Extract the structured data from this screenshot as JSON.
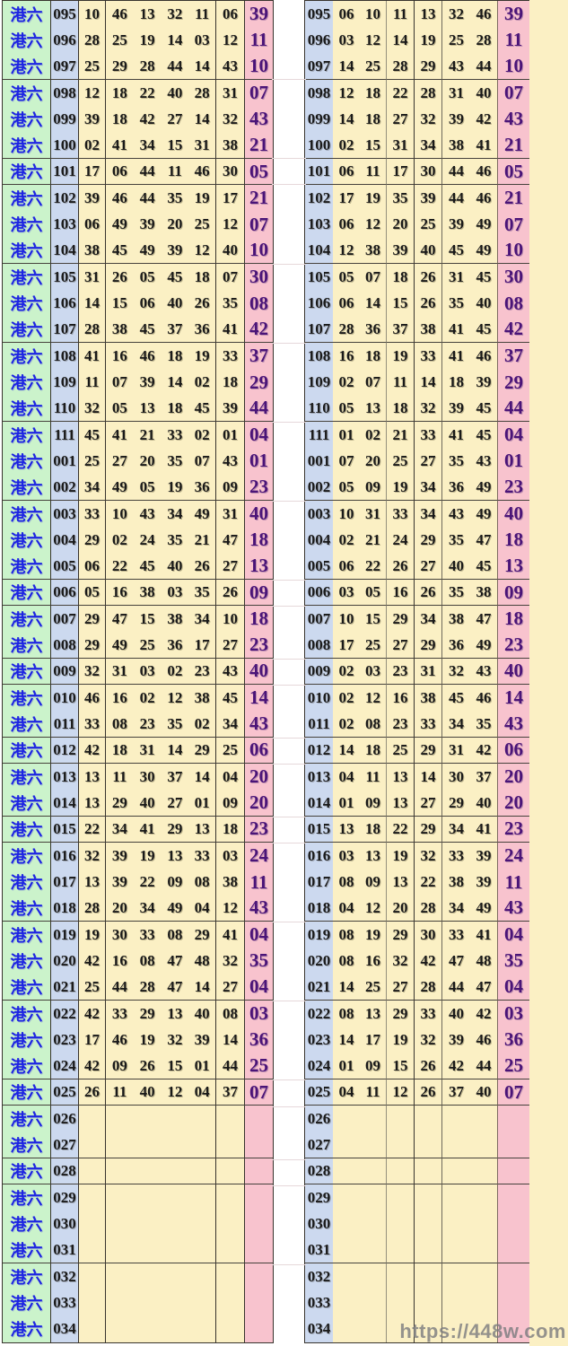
{
  "site": {
    "watermark": "https://448w.com"
  },
  "row_label": "港六",
  "colors": {
    "label_bg": "#cbf3cb",
    "period_bg": "#ccd9ef",
    "number_bg": "#fbf0c4",
    "special_bg": "#f8c3ce",
    "label_text": "#1d24e2",
    "special_text": "#4a1478",
    "watermark_text": "#7d7d80"
  },
  "groups": [
    3,
    3,
    1,
    3,
    3,
    3,
    3,
    3,
    1,
    2,
    1,
    2,
    1,
    2,
    1,
    3,
    3,
    3,
    1,
    2,
    1,
    3,
    3
  ],
  "draws": [
    {
      "period": "095",
      "drawn": [
        "10",
        "46",
        "13",
        "32",
        "11",
        "06"
      ],
      "sorted": [
        "06",
        "10",
        "11",
        "13",
        "32",
        "46"
      ],
      "special": "39"
    },
    {
      "period": "096",
      "drawn": [
        "28",
        "25",
        "19",
        "14",
        "03",
        "12"
      ],
      "sorted": [
        "03",
        "12",
        "14",
        "19",
        "25",
        "28"
      ],
      "special": "11"
    },
    {
      "period": "097",
      "drawn": [
        "25",
        "29",
        "28",
        "44",
        "14",
        "43"
      ],
      "sorted": [
        "14",
        "25",
        "28",
        "29",
        "43",
        "44"
      ],
      "special": "10"
    },
    {
      "period": "098",
      "drawn": [
        "12",
        "18",
        "22",
        "40",
        "28",
        "31"
      ],
      "sorted": [
        "12",
        "18",
        "22",
        "28",
        "31",
        "40"
      ],
      "special": "07"
    },
    {
      "period": "099",
      "drawn": [
        "39",
        "18",
        "42",
        "27",
        "14",
        "32"
      ],
      "sorted": [
        "14",
        "18",
        "27",
        "32",
        "39",
        "42"
      ],
      "special": "43"
    },
    {
      "period": "100",
      "drawn": [
        "02",
        "41",
        "34",
        "15",
        "31",
        "38"
      ],
      "sorted": [
        "02",
        "15",
        "31",
        "34",
        "38",
        "41"
      ],
      "special": "21"
    },
    {
      "period": "101",
      "drawn": [
        "17",
        "06",
        "44",
        "11",
        "46",
        "30"
      ],
      "sorted": [
        "06",
        "11",
        "17",
        "30",
        "44",
        "46"
      ],
      "special": "05"
    },
    {
      "period": "102",
      "drawn": [
        "39",
        "46",
        "44",
        "35",
        "19",
        "17"
      ],
      "sorted": [
        "17",
        "19",
        "35",
        "39",
        "44",
        "46"
      ],
      "special": "21"
    },
    {
      "period": "103",
      "drawn": [
        "06",
        "49",
        "39",
        "20",
        "25",
        "12"
      ],
      "sorted": [
        "06",
        "12",
        "20",
        "25",
        "39",
        "49"
      ],
      "special": "07"
    },
    {
      "period": "104",
      "drawn": [
        "38",
        "45",
        "49",
        "39",
        "12",
        "40"
      ],
      "sorted": [
        "12",
        "38",
        "39",
        "40",
        "45",
        "49"
      ],
      "special": "10"
    },
    {
      "period": "105",
      "drawn": [
        "31",
        "26",
        "05",
        "45",
        "18",
        "07"
      ],
      "sorted": [
        "05",
        "07",
        "18",
        "26",
        "31",
        "45"
      ],
      "special": "30"
    },
    {
      "period": "106",
      "drawn": [
        "14",
        "15",
        "06",
        "40",
        "26",
        "35"
      ],
      "sorted": [
        "06",
        "14",
        "15",
        "26",
        "35",
        "40"
      ],
      "special": "08"
    },
    {
      "period": "107",
      "drawn": [
        "28",
        "38",
        "45",
        "37",
        "36",
        "41"
      ],
      "sorted": [
        "28",
        "36",
        "37",
        "38",
        "41",
        "45"
      ],
      "special": "42"
    },
    {
      "period": "108",
      "drawn": [
        "41",
        "16",
        "46",
        "18",
        "19",
        "33"
      ],
      "sorted": [
        "16",
        "18",
        "19",
        "33",
        "41",
        "46"
      ],
      "special": "37"
    },
    {
      "period": "109",
      "drawn": [
        "11",
        "07",
        "39",
        "14",
        "02",
        "18"
      ],
      "sorted": [
        "02",
        "07",
        "11",
        "14",
        "18",
        "39"
      ],
      "special": "29"
    },
    {
      "period": "110",
      "drawn": [
        "32",
        "05",
        "13",
        "18",
        "45",
        "39"
      ],
      "sorted": [
        "05",
        "13",
        "18",
        "32",
        "39",
        "45"
      ],
      "special": "44"
    },
    {
      "period": "111",
      "drawn": [
        "45",
        "41",
        "21",
        "33",
        "02",
        "01"
      ],
      "sorted": [
        "01",
        "02",
        "21",
        "33",
        "41",
        "45"
      ],
      "special": "04"
    },
    {
      "period": "001",
      "drawn": [
        "25",
        "27",
        "20",
        "35",
        "07",
        "43"
      ],
      "sorted": [
        "07",
        "20",
        "25",
        "27",
        "35",
        "43"
      ],
      "special": "01"
    },
    {
      "period": "002",
      "drawn": [
        "34",
        "49",
        "05",
        "19",
        "36",
        "09"
      ],
      "sorted": [
        "05",
        "09",
        "19",
        "34",
        "36",
        "49"
      ],
      "special": "23"
    },
    {
      "period": "003",
      "drawn": [
        "33",
        "10",
        "43",
        "34",
        "49",
        "31"
      ],
      "sorted": [
        "10",
        "31",
        "33",
        "34",
        "43",
        "49"
      ],
      "special": "40"
    },
    {
      "period": "004",
      "drawn": [
        "29",
        "02",
        "24",
        "35",
        "21",
        "47"
      ],
      "sorted": [
        "02",
        "21",
        "24",
        "29",
        "35",
        "47"
      ],
      "special": "18"
    },
    {
      "period": "005",
      "drawn": [
        "06",
        "22",
        "45",
        "40",
        "26",
        "27"
      ],
      "sorted": [
        "06",
        "22",
        "26",
        "27",
        "40",
        "45"
      ],
      "special": "13"
    },
    {
      "period": "006",
      "drawn": [
        "05",
        "16",
        "38",
        "03",
        "35",
        "26"
      ],
      "sorted": [
        "03",
        "05",
        "16",
        "26",
        "35",
        "38"
      ],
      "special": "09"
    },
    {
      "period": "007",
      "drawn": [
        "29",
        "47",
        "15",
        "38",
        "34",
        "10"
      ],
      "sorted": [
        "10",
        "15",
        "29",
        "34",
        "38",
        "47"
      ],
      "special": "18"
    },
    {
      "period": "008",
      "drawn": [
        "29",
        "49",
        "25",
        "36",
        "17",
        "27"
      ],
      "sorted": [
        "17",
        "25",
        "27",
        "29",
        "36",
        "49"
      ],
      "special": "23"
    },
    {
      "period": "009",
      "drawn": [
        "32",
        "31",
        "03",
        "02",
        "23",
        "43"
      ],
      "sorted": [
        "02",
        "03",
        "23",
        "31",
        "32",
        "43"
      ],
      "special": "40"
    },
    {
      "period": "010",
      "drawn": [
        "46",
        "16",
        "02",
        "12",
        "38",
        "45"
      ],
      "sorted": [
        "02",
        "12",
        "16",
        "38",
        "45",
        "46"
      ],
      "special": "14"
    },
    {
      "period": "011",
      "drawn": [
        "33",
        "08",
        "23",
        "35",
        "02",
        "34"
      ],
      "sorted": [
        "02",
        "08",
        "23",
        "33",
        "34",
        "35"
      ],
      "special": "43"
    },
    {
      "period": "012",
      "drawn": [
        "42",
        "18",
        "31",
        "14",
        "29",
        "25"
      ],
      "sorted": [
        "14",
        "18",
        "25",
        "29",
        "31",
        "42"
      ],
      "special": "06"
    },
    {
      "period": "013",
      "drawn": [
        "13",
        "11",
        "30",
        "37",
        "14",
        "04"
      ],
      "sorted": [
        "04",
        "11",
        "13",
        "14",
        "30",
        "37"
      ],
      "special": "20"
    },
    {
      "period": "014",
      "drawn": [
        "13",
        "29",
        "40",
        "27",
        "01",
        "09"
      ],
      "sorted": [
        "01",
        "09",
        "13",
        "27",
        "29",
        "40"
      ],
      "special": "20"
    },
    {
      "period": "015",
      "drawn": [
        "22",
        "34",
        "41",
        "29",
        "13",
        "18"
      ],
      "sorted": [
        "13",
        "18",
        "22",
        "29",
        "34",
        "41"
      ],
      "special": "23"
    },
    {
      "period": "016",
      "drawn": [
        "32",
        "39",
        "19",
        "13",
        "33",
        "03"
      ],
      "sorted": [
        "03",
        "13",
        "19",
        "32",
        "33",
        "39"
      ],
      "special": "24"
    },
    {
      "period": "017",
      "drawn": [
        "13",
        "39",
        "22",
        "09",
        "08",
        "38"
      ],
      "sorted": [
        "08",
        "09",
        "13",
        "22",
        "38",
        "39"
      ],
      "special": "11"
    },
    {
      "period": "018",
      "drawn": [
        "28",
        "20",
        "34",
        "49",
        "04",
        "12"
      ],
      "sorted": [
        "04",
        "12",
        "20",
        "28",
        "34",
        "49"
      ],
      "special": "43"
    },
    {
      "period": "019",
      "drawn": [
        "19",
        "30",
        "33",
        "08",
        "29",
        "41"
      ],
      "sorted": [
        "08",
        "19",
        "29",
        "30",
        "33",
        "41"
      ],
      "special": "04"
    },
    {
      "period": "020",
      "drawn": [
        "42",
        "16",
        "08",
        "47",
        "48",
        "32"
      ],
      "sorted": [
        "08",
        "16",
        "32",
        "42",
        "47",
        "48"
      ],
      "special": "35"
    },
    {
      "period": "021",
      "drawn": [
        "25",
        "44",
        "28",
        "47",
        "14",
        "27"
      ],
      "sorted": [
        "14",
        "25",
        "27",
        "28",
        "44",
        "47"
      ],
      "special": "04"
    },
    {
      "period": "022",
      "drawn": [
        "42",
        "33",
        "29",
        "13",
        "40",
        "08"
      ],
      "sorted": [
        "08",
        "13",
        "29",
        "33",
        "40",
        "42"
      ],
      "special": "03"
    },
    {
      "period": "023",
      "drawn": [
        "17",
        "46",
        "19",
        "32",
        "39",
        "14"
      ],
      "sorted": [
        "14",
        "17",
        "19",
        "32",
        "39",
        "46"
      ],
      "special": "36"
    },
    {
      "period": "024",
      "drawn": [
        "42",
        "09",
        "26",
        "15",
        "01",
        "44"
      ],
      "sorted": [
        "01",
        "09",
        "15",
        "26",
        "42",
        "44"
      ],
      "special": "25"
    },
    {
      "period": "025",
      "drawn": [
        "26",
        "11",
        "40",
        "12",
        "04",
        "37"
      ],
      "sorted": [
        "04",
        "11",
        "12",
        "26",
        "37",
        "40"
      ],
      "special": "07"
    }
  ],
  "empty_periods": [
    "026",
    "027",
    "028",
    "029",
    "030",
    "031",
    "032",
    "033",
    "034"
  ]
}
